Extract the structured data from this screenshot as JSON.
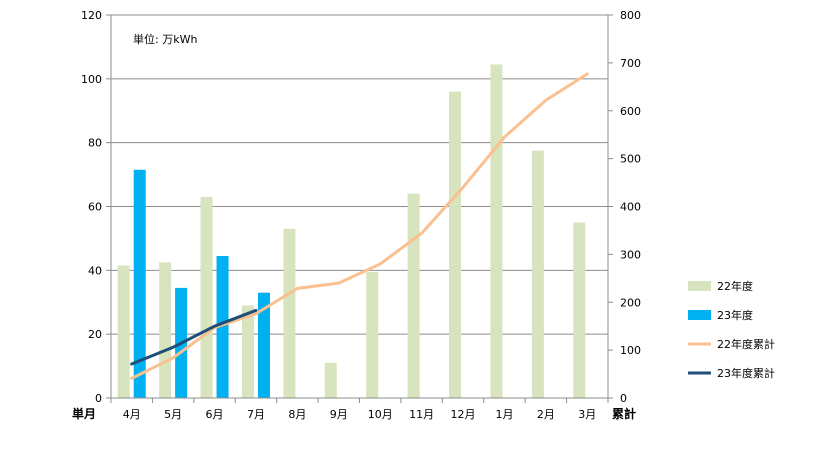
{
  "chart_data": {
    "type": "bar",
    "unit_note": "単位: 万kWh",
    "left_axis_label": "単月",
    "right_axis_label": "累計",
    "categories": [
      "4月",
      "5月",
      "6月",
      "7月",
      "8月",
      "9月",
      "10月",
      "11月",
      "12月",
      "1月",
      "2月",
      "3月"
    ],
    "left_axis": {
      "min": 0,
      "max": 120,
      "ticks": [
        0,
        20,
        40,
        60,
        80,
        100,
        120
      ]
    },
    "right_axis": {
      "min": 0,
      "max": 800,
      "ticks": [
        0,
        100,
        200,
        300,
        400,
        500,
        600,
        700,
        800
      ]
    },
    "grid": true,
    "legend_position": "right",
    "series": [
      {
        "name": "22年度",
        "kind": "bar",
        "axis": "left",
        "color": "#d7e4bd",
        "values": [
          41.5,
          42.5,
          63,
          29,
          53,
          11,
          39.5,
          64,
          96,
          104.5,
          77.5,
          55
        ]
      },
      {
        "name": "23年度",
        "kind": "bar",
        "axis": "left",
        "color": "#00b0f0",
        "values": [
          71.5,
          34.5,
          44.5,
          33,
          null,
          null,
          null,
          null,
          null,
          null,
          null,
          null
        ]
      },
      {
        "name": "22年度累計",
        "kind": "line",
        "axis": "right",
        "color": "#fac090",
        "values": [
          41,
          84,
          147,
          176,
          229,
          240,
          280,
          344,
          440,
          545,
          622,
          677
        ]
      },
      {
        "name": "23年度累計",
        "kind": "line",
        "axis": "right",
        "color": "#1f4e79",
        "values": [
          71,
          106,
          150,
          183,
          null,
          null,
          null,
          null,
          null,
          null,
          null,
          null
        ]
      }
    ]
  }
}
